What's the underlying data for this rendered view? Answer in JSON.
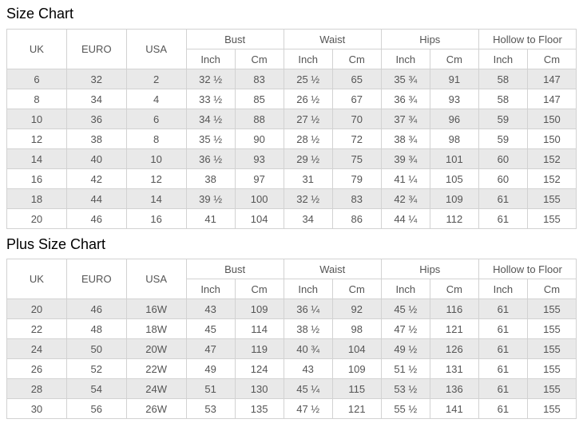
{
  "colors": {
    "row_shaded": "#e9e9e9",
    "row_plain": "#ffffff",
    "border": "#d2d2d2",
    "cell_text": "#555555",
    "title_text": "#000000"
  },
  "tables": [
    {
      "title": "Size Chart",
      "simple_headers": [
        "UK",
        "EURO",
        "USA"
      ],
      "group_headers": [
        {
          "label": "Bust",
          "sub": [
            "Inch",
            "Cm"
          ]
        },
        {
          "label": "Waist",
          "sub": [
            "Inch",
            "Cm"
          ]
        },
        {
          "label": "Hips",
          "sub": [
            "Inch",
            "Cm"
          ]
        },
        {
          "label": "Hollow to Floor",
          "sub": [
            "Inch",
            "Cm"
          ]
        }
      ],
      "rows": [
        [
          "6",
          "32",
          "2",
          "32 ½",
          "83",
          "25 ½",
          "65",
          "35 ¾",
          "91",
          "58",
          "147"
        ],
        [
          "8",
          "34",
          "4",
          "33 ½",
          "85",
          "26 ½",
          "67",
          "36 ¾",
          "93",
          "58",
          "147"
        ],
        [
          "10",
          "36",
          "6",
          "34 ½",
          "88",
          "27 ½",
          "70",
          "37 ¾",
          "96",
          "59",
          "150"
        ],
        [
          "12",
          "38",
          "8",
          "35 ½",
          "90",
          "28 ½",
          "72",
          "38 ¾",
          "98",
          "59",
          "150"
        ],
        [
          "14",
          "40",
          "10",
          "36 ½",
          "93",
          "29 ½",
          "75",
          "39 ¾",
          "101",
          "60",
          "152"
        ],
        [
          "16",
          "42",
          "12",
          "38",
          "97",
          "31",
          "79",
          "41 ¼",
          "105",
          "60",
          "152"
        ],
        [
          "18",
          "44",
          "14",
          "39 ½",
          "100",
          "32 ½",
          "83",
          "42 ¾",
          "109",
          "61",
          "155"
        ],
        [
          "20",
          "46",
          "16",
          "41",
          "104",
          "34",
          "86",
          "44 ¼",
          "112",
          "61",
          "155"
        ]
      ]
    },
    {
      "title": "Plus Size Chart",
      "simple_headers": [
        "UK",
        "EURO",
        "USA"
      ],
      "group_headers": [
        {
          "label": "Bust",
          "sub": [
            "Inch",
            "Cm"
          ]
        },
        {
          "label": "Waist",
          "sub": [
            "Inch",
            "Cm"
          ]
        },
        {
          "label": "Hips",
          "sub": [
            "Inch",
            "Cm"
          ]
        },
        {
          "label": "Hollow to Floor",
          "sub": [
            "Inch",
            "Cm"
          ]
        }
      ],
      "rows": [
        [
          "20",
          "46",
          "16W",
          "43",
          "109",
          "36 ¼",
          "92",
          "45 ½",
          "116",
          "61",
          "155"
        ],
        [
          "22",
          "48",
          "18W",
          "45",
          "114",
          "38 ½",
          "98",
          "47 ½",
          "121",
          "61",
          "155"
        ],
        [
          "24",
          "50",
          "20W",
          "47",
          "119",
          "40 ¾",
          "104",
          "49 ½",
          "126",
          "61",
          "155"
        ],
        [
          "26",
          "52",
          "22W",
          "49",
          "124",
          "43",
          "109",
          "51 ½",
          "131",
          "61",
          "155"
        ],
        [
          "28",
          "54",
          "24W",
          "51",
          "130",
          "45 ¼",
          "115",
          "53 ½",
          "136",
          "61",
          "155"
        ],
        [
          "30",
          "56",
          "26W",
          "53",
          "135",
          "47 ½",
          "121",
          "55 ½",
          "141",
          "61",
          "155"
        ]
      ]
    }
  ]
}
